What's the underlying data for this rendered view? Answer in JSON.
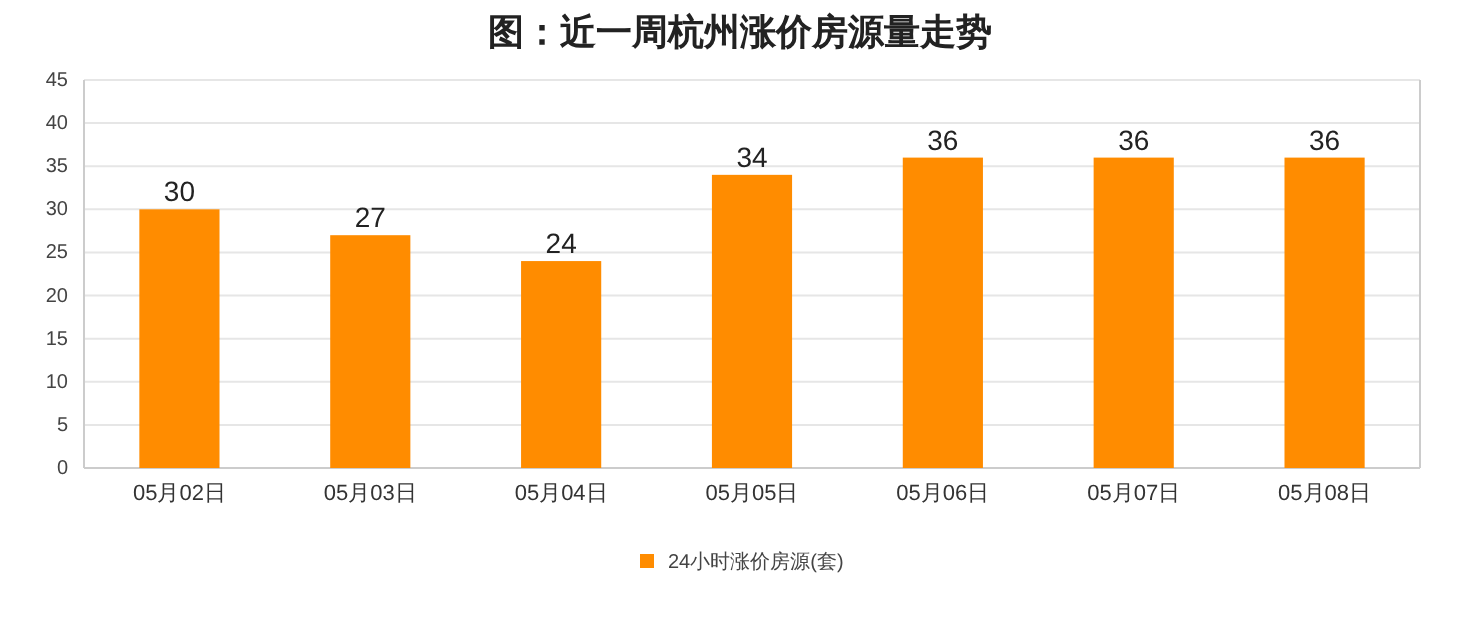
{
  "chart_data": {
    "type": "bar",
    "title": "图：近一周杭州涨价房源量走势",
    "categories": [
      "05月02日",
      "05月03日",
      "05月04日",
      "05月05日",
      "05月06日",
      "05月07日",
      "05月08日"
    ],
    "series": [
      {
        "name": "24小时涨价房源(套)",
        "color": "#ff8c00",
        "values": [
          30,
          27,
          24,
          34,
          36,
          36,
          36
        ]
      }
    ],
    "ylim": [
      0,
      45
    ],
    "yticks": [
      0,
      5,
      10,
      15,
      20,
      25,
      30,
      35,
      40,
      45
    ],
    "grid": "y",
    "legend": "bottom",
    "data_labels": true
  }
}
